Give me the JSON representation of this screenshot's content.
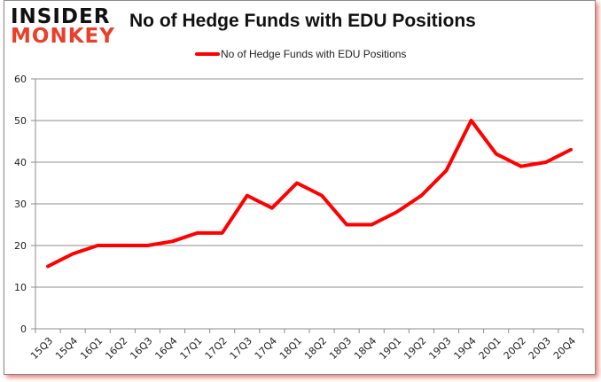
{
  "logo": {
    "line1": "INSIDER",
    "line2": "MONKEY"
  },
  "chart_data": {
    "type": "line",
    "title": "No of Hedge Funds with EDU Positions",
    "xlabel": "",
    "ylabel": "",
    "ylim": [
      0,
      60
    ],
    "yticks": [
      0,
      10,
      20,
      30,
      40,
      50,
      60
    ],
    "grid": true,
    "legend_position": "top",
    "categories": [
      "15Q3",
      "15Q4",
      "16Q1",
      "16Q2",
      "16Q3",
      "16Q4",
      "17Q1",
      "17Q2",
      "17Q3",
      "17Q4",
      "18Q1",
      "18Q2",
      "18Q3",
      "18Q4",
      "19Q1",
      "19Q2",
      "19Q3",
      "19Q4",
      "20Q1",
      "20Q2",
      "20Q3",
      "20Q4"
    ],
    "series": [
      {
        "name": "No of Hedge Funds with EDU Positions",
        "color": "#ff0000",
        "values": [
          15,
          18,
          20,
          20,
          20,
          21,
          23,
          23,
          32,
          29,
          35,
          32,
          25,
          25,
          28,
          32,
          38,
          50,
          42,
          39,
          40,
          43
        ]
      }
    ]
  }
}
